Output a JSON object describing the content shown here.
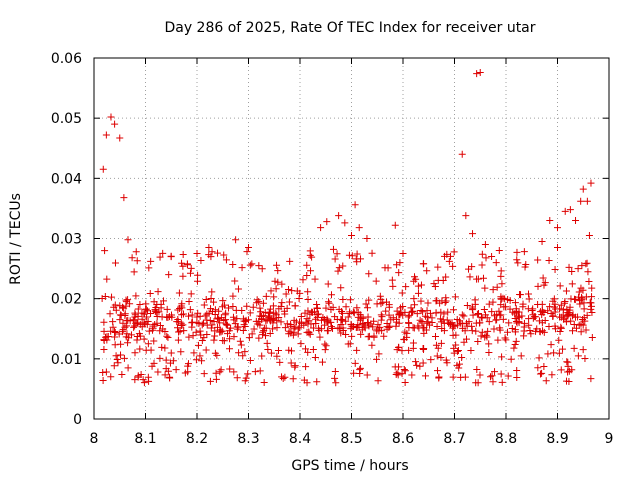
{
  "chart_data": {
    "type": "scatter",
    "title": "Day 286 of 2025, Rate Of TEC Index for receiver utar",
    "xlabel": "GPS time / hours",
    "ylabel": "ROTI / TECUs",
    "xlim": [
      8,
      9
    ],
    "ylim": [
      0,
      0.06
    ],
    "x_ticks": [
      8,
      8.1,
      8.2,
      8.3,
      8.4,
      8.5,
      8.6,
      8.7,
      8.8,
      8.9,
      9
    ],
    "x_tick_labels": [
      "8",
      "8.1",
      "8.2",
      "8.3",
      "8.4",
      "8.5",
      "8.6",
      "8.7",
      "8.8",
      "8.9",
      "9"
    ],
    "y_ticks": [
      0,
      0.01,
      0.02,
      0.03,
      0.04,
      0.05,
      0.06
    ],
    "y_tick_labels": [
      "0",
      "0.01",
      "0.02",
      "0.03",
      "0.04",
      "0.05",
      "0.06"
    ],
    "grid": true,
    "marker": "plus",
    "color": "#dd0000",
    "series": [
      {
        "name": "utar",
        "points": [
          [
            8.018,
            0.0415
          ],
          [
            8.024,
            0.0472
          ],
          [
            8.033,
            0.0502
          ],
          [
            8.04,
            0.049
          ],
          [
            8.05,
            0.0467
          ],
          [
            8.058,
            0.0368
          ],
          [
            8.066,
            0.0298
          ],
          [
            8.074,
            0.0268
          ],
          [
            8.082,
            0.0278
          ],
          [
            8.11,
            0.0262
          ],
          [
            8.145,
            0.024
          ],
          [
            8.2,
            0.0275
          ],
          [
            8.223,
            0.0285
          ],
          [
            8.275,
            0.0298
          ],
          [
            8.3,
            0.0285
          ],
          [
            8.32,
            0.0255
          ],
          [
            8.38,
            0.0262
          ],
          [
            8.42,
            0.0272
          ],
          [
            8.44,
            0.0318
          ],
          [
            8.452,
            0.0328
          ],
          [
            8.465,
            0.0282
          ],
          [
            8.475,
            0.0338
          ],
          [
            8.487,
            0.0326
          ],
          [
            8.5,
            0.0305
          ],
          [
            8.507,
            0.0356
          ],
          [
            8.515,
            0.0318
          ],
          [
            8.53,
            0.03
          ],
          [
            8.585,
            0.0322
          ],
          [
            8.6,
            0.0275
          ],
          [
            8.64,
            0.0258
          ],
          [
            8.69,
            0.0262
          ],
          [
            8.715,
            0.044
          ],
          [
            8.722,
            0.0338
          ],
          [
            8.735,
            0.0308
          ],
          [
            8.743,
            0.0574
          ],
          [
            8.75,
            0.0576
          ],
          [
            8.76,
            0.029
          ],
          [
            8.772,
            0.027
          ],
          [
            8.787,
            0.028
          ],
          [
            8.87,
            0.0295
          ],
          [
            8.885,
            0.033
          ],
          [
            8.9,
            0.0318
          ],
          [
            8.915,
            0.0345
          ],
          [
            8.925,
            0.0348
          ],
          [
            8.935,
            0.033
          ],
          [
            8.945,
            0.0362
          ],
          [
            8.95,
            0.0382
          ],
          [
            8.958,
            0.0362
          ],
          [
            8.965,
            0.0392
          ],
          [
            8.962,
            0.0305
          ],
          [
            8.9,
            0.0285
          ],
          [
            8.94,
            0.025
          ],
          [
            8.955,
            0.0258
          ]
        ]
      }
    ]
  }
}
